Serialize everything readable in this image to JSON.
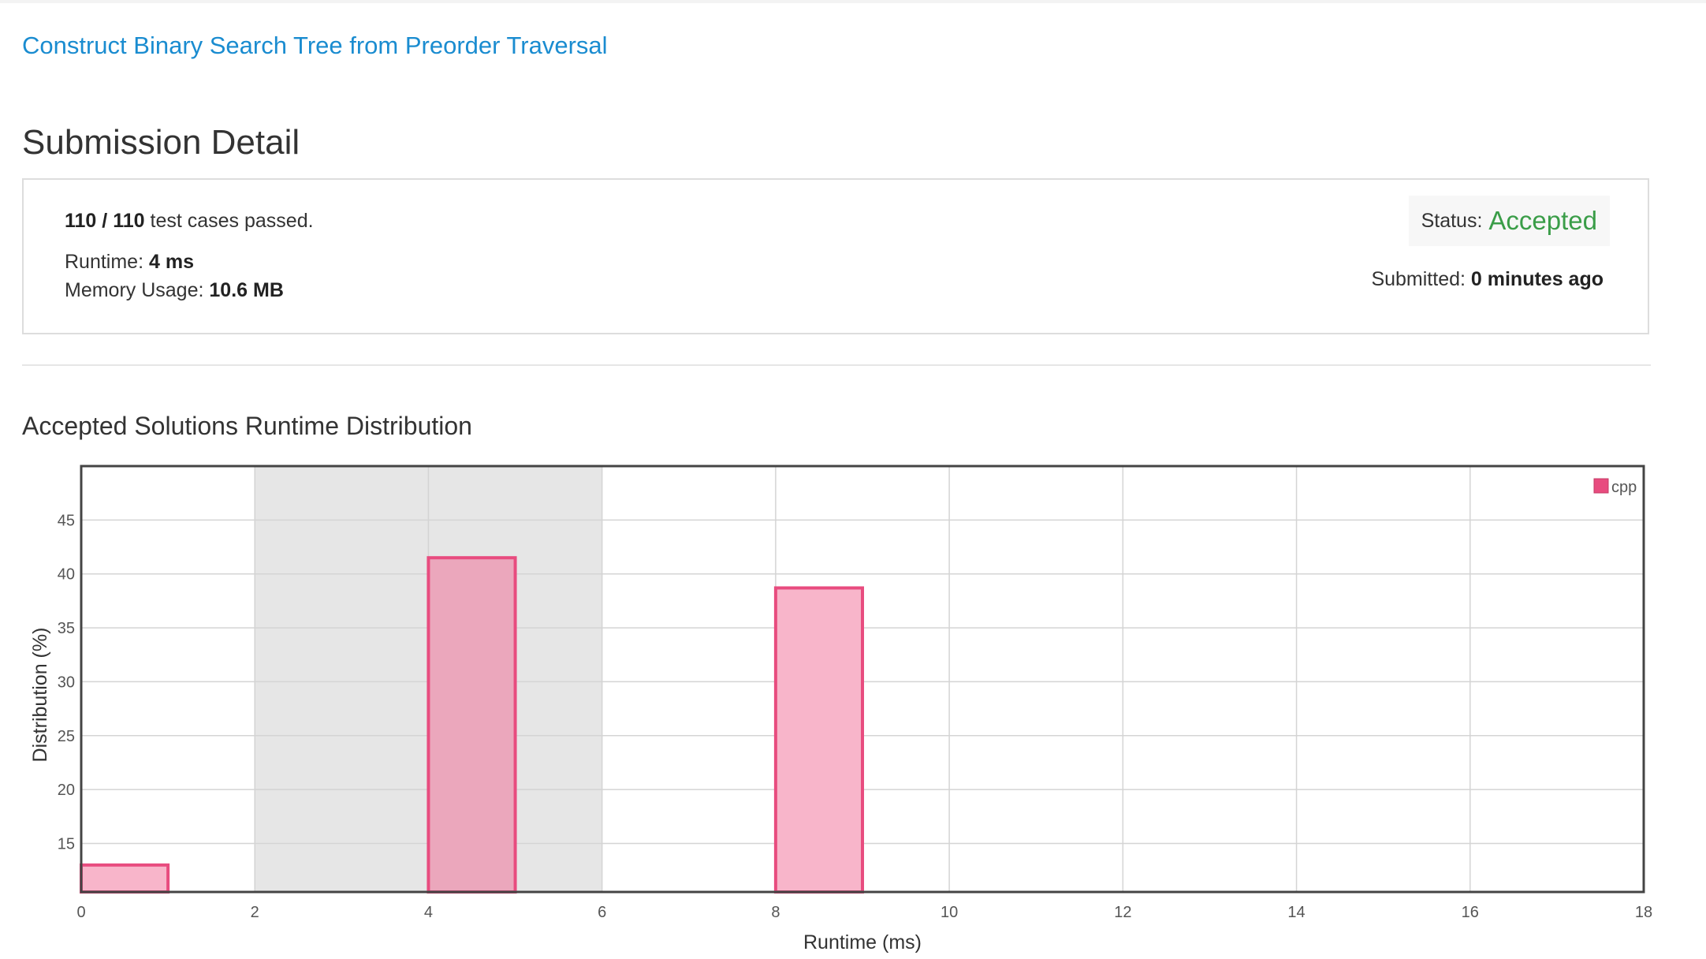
{
  "problem": {
    "title": "Construct Binary Search Tree from Preorder Traversal"
  },
  "page": {
    "title": "Submission Detail"
  },
  "summary": {
    "passed": "110",
    "separator": "/",
    "total": "110",
    "test_cases_suffix": "test cases passed.",
    "runtime_label": "Runtime:",
    "runtime_value": "4 ms",
    "memory_label": "Memory Usage:",
    "memory_value": "10.6 MB",
    "status_label": "Status:",
    "status_value": "Accepted",
    "submitted_label": "Submitted:",
    "submitted_value": "0 minutes ago"
  },
  "colors": {
    "link": "#1a8cd0",
    "accepted": "#3a9d48",
    "bar_fill": "#f8b5ca",
    "bar_fill_highlight": "#eba7bc",
    "bar_stroke": "#e84c7f",
    "highlight_band": "#e6e6e6"
  },
  "chart_data": {
    "type": "bar",
    "title": "Accepted Solutions Runtime Distribution",
    "xlabel": "Runtime (ms)",
    "ylabel": "Distribution (%)",
    "xlim": [
      0,
      18
    ],
    "ylim": [
      10.5,
      50
    ],
    "xticks": [
      0,
      2,
      4,
      6,
      8,
      10,
      12,
      14,
      16,
      18
    ],
    "yticks": [
      15,
      20,
      25,
      30,
      35,
      40,
      45
    ],
    "grid": true,
    "legend": "top-right",
    "highlight_range": [
      2,
      6
    ],
    "series": [
      {
        "name": "cpp",
        "bars": [
          {
            "x_start": 0,
            "x_end": 1,
            "value": 13.0
          },
          {
            "x_start": 4,
            "x_end": 5,
            "value": 41.5,
            "highlighted": true
          },
          {
            "x_start": 8,
            "x_end": 9,
            "value": 38.7
          }
        ]
      }
    ]
  }
}
